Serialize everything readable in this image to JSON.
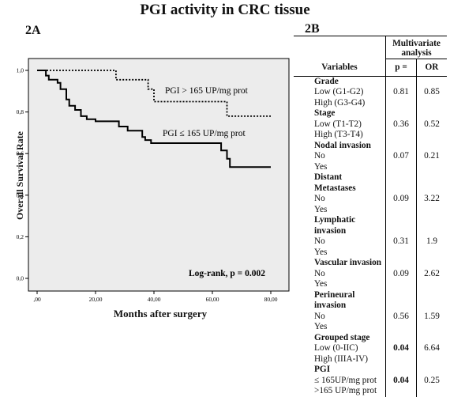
{
  "title": "PGI activity in CRC tissue",
  "panel_a": {
    "label": "2A"
  },
  "panel_b": {
    "label": "2B"
  },
  "chart_data": {
    "type": "line",
    "title": "",
    "xlabel": "Months after surgery",
    "ylabel": "Overall Survival Rate",
    "xlim": [
      0,
      80
    ],
    "ylim": [
      0,
      1.0
    ],
    "x_ticks": [
      ",00",
      "20,00",
      "40,00",
      "60,00",
      "80,00"
    ],
    "y_ticks": [
      "0,0",
      "0,2",
      "0,4",
      "0,6",
      "0,8",
      "1,0"
    ],
    "grid": false,
    "annotation": "Log-rank,  p = 0.002",
    "series": [
      {
        "name": "PGI > 165 UP/mg prot",
        "style": "dotted",
        "points": [
          [
            0,
            1.0
          ],
          [
            27,
            1.0
          ],
          [
            27,
            0.955
          ],
          [
            38,
            0.955
          ],
          [
            38,
            0.91
          ],
          [
            40,
            0.91
          ],
          [
            40,
            0.85
          ],
          [
            65,
            0.85
          ],
          [
            65,
            0.78
          ],
          [
            80,
            0.78
          ]
        ]
      },
      {
        "name": "PGI ≤ 165 UP/mg prot",
        "style": "solid",
        "points": [
          [
            0,
            1.0
          ],
          [
            3,
            1.0
          ],
          [
            3,
            0.975
          ],
          [
            4,
            0.975
          ],
          [
            4,
            0.955
          ],
          [
            7,
            0.955
          ],
          [
            7,
            0.94
          ],
          [
            8,
            0.94
          ],
          [
            8,
            0.91
          ],
          [
            10,
            0.91
          ],
          [
            10,
            0.86
          ],
          [
            11,
            0.86
          ],
          [
            11,
            0.83
          ],
          [
            13,
            0.83
          ],
          [
            13,
            0.81
          ],
          [
            15,
            0.81
          ],
          [
            15,
            0.78
          ],
          [
            17,
            0.78
          ],
          [
            17,
            0.765
          ],
          [
            20,
            0.765
          ],
          [
            20,
            0.755
          ],
          [
            28,
            0.755
          ],
          [
            28,
            0.73
          ],
          [
            31,
            0.73
          ],
          [
            31,
            0.71
          ],
          [
            36,
            0.71
          ],
          [
            36,
            0.68
          ],
          [
            37,
            0.68
          ],
          [
            37,
            0.665
          ],
          [
            39,
            0.665
          ],
          [
            39,
            0.65
          ],
          [
            63,
            0.65
          ],
          [
            63,
            0.615
          ],
          [
            65,
            0.615
          ],
          [
            65,
            0.575
          ],
          [
            66,
            0.575
          ],
          [
            66,
            0.535
          ],
          [
            80,
            0.535
          ]
        ]
      }
    ]
  },
  "table": {
    "header_top": "Multivariate analysis",
    "col_variables": "Variables",
    "col_p": "p =",
    "col_or": "OR",
    "groups": [
      {
        "name": "Grade",
        "levels": [
          "Low (G1-G2)",
          "High (G3-G4)"
        ],
        "p": "0.81",
        "or": "0.85",
        "p_bold": false
      },
      {
        "name": "Stage",
        "levels": [
          "Low (T1-T2)",
          "High  (T3-T4)"
        ],
        "p": "0.36",
        "or": "0.52",
        "p_bold": false
      },
      {
        "name": "Nodal invasion",
        "levels": [
          "No",
          "Yes"
        ],
        "p": "0.07",
        "or": "0.21",
        "p_bold": false
      },
      {
        "name": "Distant Metastases",
        "levels": [
          "No",
          "Yes"
        ],
        "p": "0.09",
        "or": "3.22",
        "p_bold": false
      },
      {
        "name": "Lymphatic invasion",
        "levels": [
          "No",
          "Yes"
        ],
        "p": "0.31",
        "or": "1.9",
        "p_bold": false
      },
      {
        "name": "Vascular invasion",
        "levels": [
          "No",
          "Yes"
        ],
        "p": "0.09",
        "or": "2.62",
        "p_bold": false
      },
      {
        "name": "Perineural invasion",
        "levels": [
          "No",
          "Yes"
        ],
        "p": "0.56",
        "or": "1.59",
        "p_bold": false
      },
      {
        "name": "Grouped stage",
        "levels": [
          "Low (0-IIC)",
          "High (IIIA-IV)"
        ],
        "p": "0.04",
        "or": "6.64",
        "p_bold": true
      },
      {
        "name": "PGI",
        "levels": [
          "≤ 165UP/mg prot",
          ">165 UP/mg prot"
        ],
        "p": "0.04",
        "or": "0.25",
        "p_bold": true
      }
    ]
  }
}
